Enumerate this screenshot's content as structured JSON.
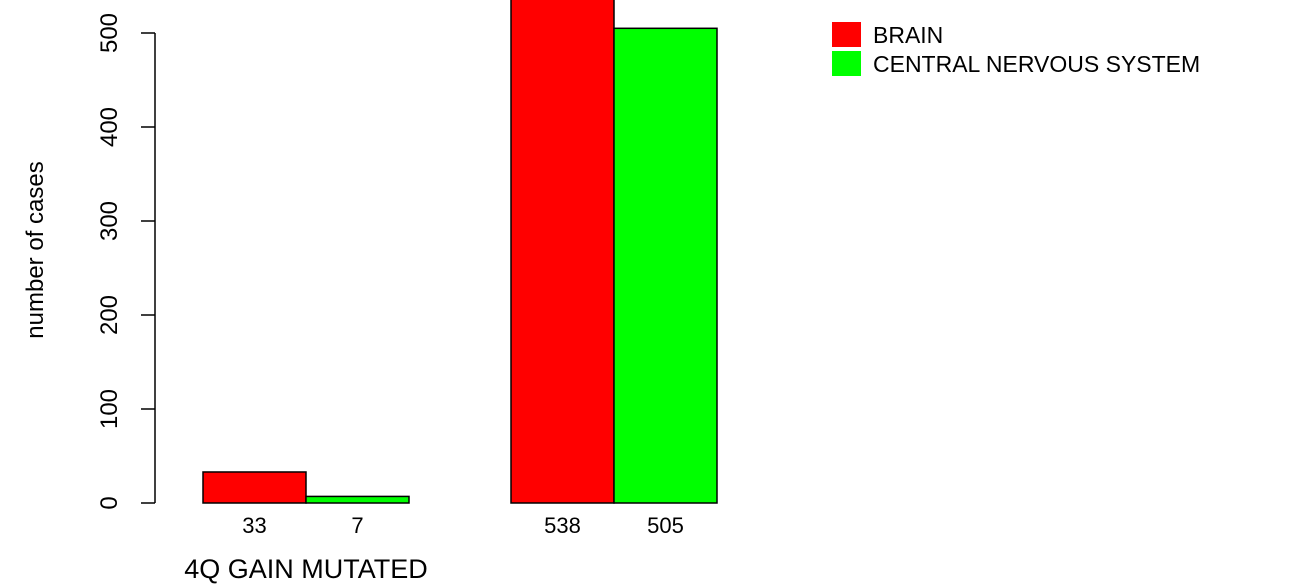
{
  "chart_data": {
    "type": "bar",
    "ylabel": "number of cases",
    "ylim": [
      0,
      550
    ],
    "yticks": [
      0,
      100,
      200,
      300,
      400,
      500
    ],
    "groups": [
      {
        "label": "4Q GAIN MUTATED",
        "values": [
          33,
          7
        ],
        "value_labels": [
          "33",
          "7"
        ]
      },
      {
        "label": "",
        "values": [
          538,
          505
        ],
        "value_labels": [
          "538",
          "505"
        ]
      }
    ],
    "series": [
      {
        "name": "BRAIN",
        "color": "#ff0000"
      },
      {
        "name": "CENTRAL NERVOUS SYSTEM",
        "color": "#00ff00"
      }
    ],
    "legend_position": "top-right",
    "grid": false
  }
}
